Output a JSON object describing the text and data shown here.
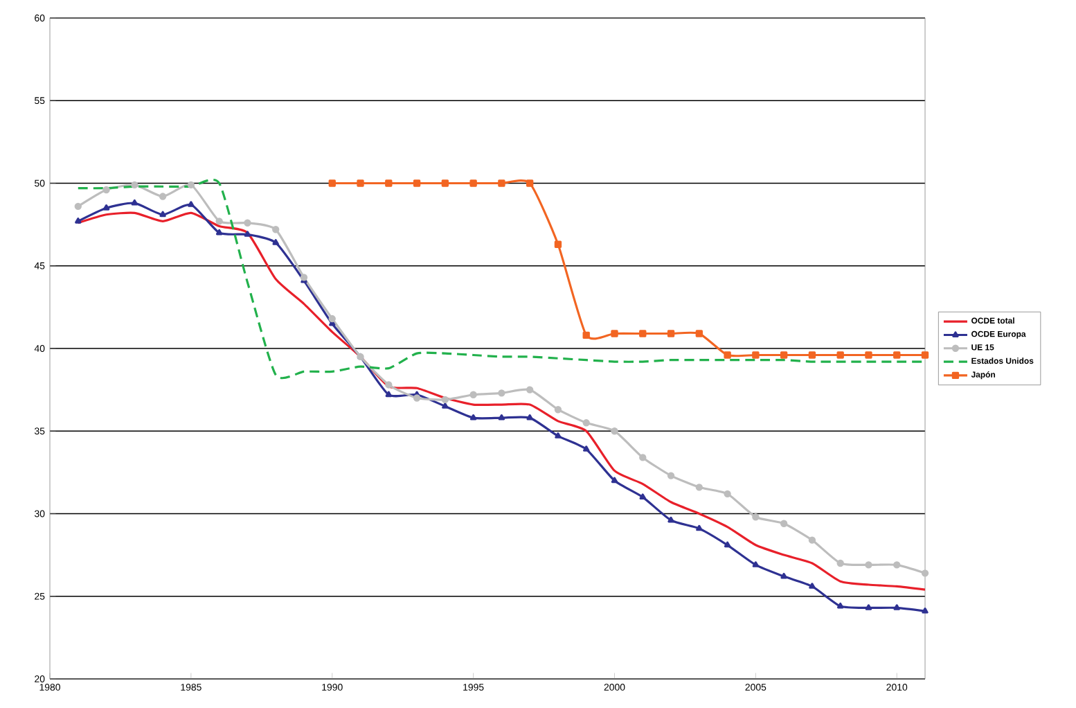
{
  "chart_data": {
    "type": "line",
    "x": [
      1981,
      1982,
      1983,
      1984,
      1985,
      1986,
      1987,
      1988,
      1989,
      1990,
      1991,
      1992,
      1993,
      1994,
      1995,
      1996,
      1997,
      1998,
      1999,
      2000,
      2001,
      2002,
      2003,
      2004,
      2005,
      2006,
      2007,
      2008,
      2009,
      2010,
      2011
    ],
    "series": [
      {
        "name": "OCDE total",
        "color": "#e8202a",
        "marker": "none",
        "line_style": "solid",
        "values": [
          47.6,
          48.1,
          48.2,
          47.7,
          48.2,
          47.4,
          47.0,
          44.2,
          42.7,
          41.0,
          39.5,
          37.7,
          37.6,
          37.0,
          36.6,
          36.6,
          36.6,
          35.6,
          35.0,
          32.6,
          31.8,
          30.7,
          30.0,
          29.2,
          28.1,
          27.5,
          27.0,
          25.9,
          25.7,
          25.6,
          25.4
        ]
      },
      {
        "name": "OCDE Europa",
        "color": "#2e3192",
        "marker": "triangle",
        "line_style": "solid",
        "values": [
          47.7,
          48.5,
          48.8,
          48.1,
          48.7,
          47.0,
          46.9,
          46.4,
          44.1,
          41.5,
          39.5,
          37.2,
          37.2,
          36.5,
          35.8,
          35.8,
          35.8,
          34.7,
          33.9,
          32.0,
          31.0,
          29.6,
          29.1,
          28.1,
          26.9,
          26.2,
          25.6,
          24.4,
          24.3,
          24.3,
          24.1
        ]
      },
      {
        "name": "UE 15",
        "color": "#bdbdbd",
        "marker": "circle",
        "line_style": "solid",
        "values": [
          48.6,
          49.6,
          49.9,
          49.2,
          49.9,
          47.7,
          47.6,
          47.2,
          44.3,
          41.8,
          39.5,
          37.8,
          37.0,
          36.9,
          37.2,
          37.3,
          37.5,
          36.3,
          35.5,
          35.0,
          33.4,
          32.3,
          31.6,
          31.2,
          29.8,
          29.4,
          28.4,
          27.0,
          26.9,
          26.9,
          26.4
        ]
      },
      {
        "name": "Estados Unidos",
        "color": "#22b14c",
        "marker": "none",
        "line_style": "dashed",
        "values": [
          49.7,
          49.7,
          49.8,
          49.8,
          49.8,
          50.0,
          44.0,
          38.4,
          38.6,
          38.6,
          38.9,
          38.8,
          39.7,
          39.7,
          39.6,
          39.5,
          39.5,
          39.4,
          39.3,
          39.2,
          39.2,
          39.3,
          39.3,
          39.3,
          39.3,
          39.3,
          39.2,
          39.2,
          39.2,
          39.2,
          39.2
        ]
      },
      {
        "name": "Japón",
        "color": "#f26522",
        "marker": "square",
        "line_style": "solid",
        "x": [
          1990,
          1991,
          1992,
          1993,
          1994,
          1995,
          1996,
          1997,
          1998,
          1999,
          2000,
          2001,
          2002,
          2003,
          2004,
          2005,
          2006,
          2007,
          2008,
          2009,
          2010,
          2011
        ],
        "values": [
          50,
          50,
          50,
          50,
          50,
          50,
          50,
          50,
          46.3,
          40.8,
          40.9,
          40.9,
          40.9,
          40.9,
          39.6,
          39.6,
          39.6,
          39.6,
          39.6,
          39.6,
          39.6,
          39.6
        ]
      }
    ],
    "xlim": [
      1980,
      2011
    ],
    "xticks": [
      1980,
      1985,
      1990,
      1995,
      2000,
      2005,
      2010
    ],
    "ylim": [
      20,
      60
    ],
    "yticks": [
      20,
      25,
      30,
      35,
      40,
      45,
      50,
      55,
      60
    ],
    "grid": "y",
    "legend": "right"
  }
}
